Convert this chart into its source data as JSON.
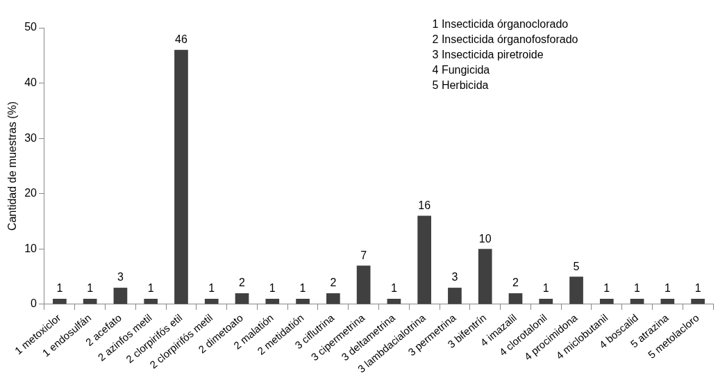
{
  "chart_data": {
    "type": "bar",
    "ylabel": "Cantidad de muestras (%)",
    "categories": [
      "1 metoxiclor",
      "1 endosulfán",
      "2 acefato",
      "2 azinfos metil",
      "2 clorpirifós etil",
      "2 clorpirifós metil",
      "2 dimetoato",
      "2 malatión",
      "2 metidatión",
      "3 ciflutrina",
      "3 cipermetrina",
      "3 deltametrina",
      "3 lambdacialotrina",
      "3 permetrina",
      "3 bifentrín",
      "4 imazalil",
      "4 clorotalonil",
      "4 procimidona",
      "4 miclobutanil",
      "4 boscalid",
      "5 atrazina",
      "5 metolacloro"
    ],
    "values": [
      1,
      1,
      3,
      1,
      46,
      1,
      2,
      1,
      1,
      2,
      7,
      1,
      16,
      3,
      10,
      2,
      1,
      5,
      1,
      1,
      1,
      1
    ],
    "color": "#404040",
    "ylim": [
      0,
      50
    ],
    "yticks": [
      0,
      10,
      20,
      30,
      40,
      50
    ],
    "grid": false,
    "legend": false,
    "data_labels": true,
    "annotations": [
      "1 Insecticida órganoclorado",
      "2 Insecticida órganofosforado",
      "3 Insecticida piretroide",
      "4 Fungicida",
      "5 Herbicida"
    ]
  }
}
